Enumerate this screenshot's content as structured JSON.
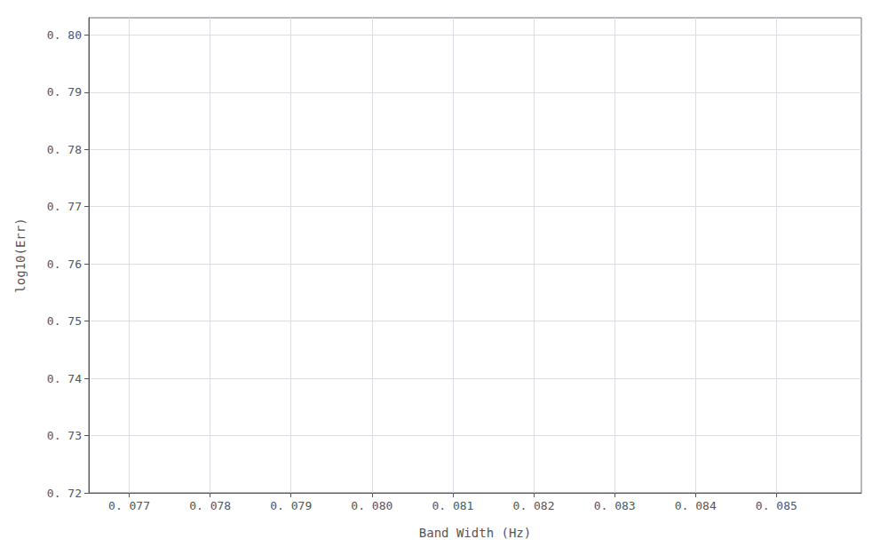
{
  "chart_data": {
    "type": "scatter",
    "xlabel": "Band Width (Hz)",
    "ylabel": "log10(Err)",
    "xlim": [
      0.0765,
      0.08605
    ],
    "ylim": [
      0.72,
      0.803
    ],
    "xticks": [
      {
        "value": 0.077,
        "label": "0. 077"
      },
      {
        "value": 0.078,
        "label": "0. 078"
      },
      {
        "value": 0.079,
        "label": "0. 079"
      },
      {
        "value": 0.08,
        "label": "0. 080"
      },
      {
        "value": 0.081,
        "label": "0. 081"
      },
      {
        "value": 0.082,
        "label": "0. 082"
      },
      {
        "value": 0.083,
        "label": "0. 083"
      },
      {
        "value": 0.084,
        "label": "0. 084"
      },
      {
        "value": 0.085,
        "label": "0. 085"
      }
    ],
    "yticks": [
      {
        "value": 0.72,
        "label": "0. 72"
      },
      {
        "value": 0.73,
        "label": "0. 73"
      },
      {
        "value": 0.74,
        "label": "0. 74"
      },
      {
        "value": 0.75,
        "label": "0. 75"
      },
      {
        "value": 0.76,
        "label": "0. 76"
      },
      {
        "value": 0.77,
        "label": "0. 77"
      },
      {
        "value": 0.78,
        "label": "0. 78"
      },
      {
        "value": 0.79,
        "label": "0. 79"
      },
      {
        "value": 0.8,
        "label": "0. 80"
      }
    ],
    "grid": true
  }
}
